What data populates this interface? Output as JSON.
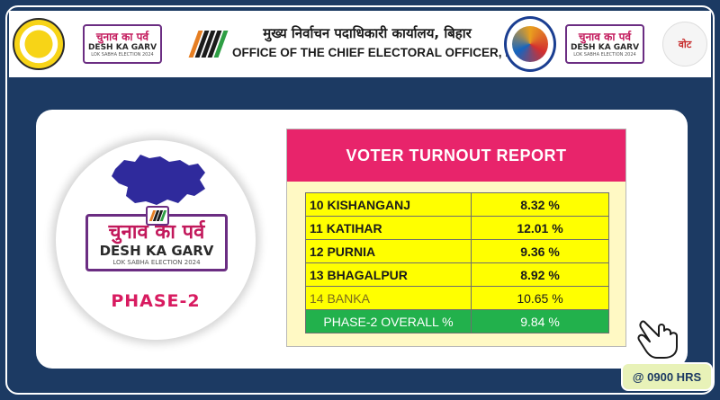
{
  "header": {
    "title_hindi": "मुख्य निर्वाचन पदाधिकारी कार्यालय, बिहार",
    "title_english": "OFFICE OF THE CHIEF ELECTORAL OFFICER, BIHAR",
    "campaign_logo": {
      "hindi": "चुनाव का पर्व",
      "english": "DESH KA GARV",
      "subtitle": "LOK SABHA ELECTION 2024"
    },
    "vote_logo_text": "वोट"
  },
  "emblem": {
    "campaign_hindi": "चुनाव का पर्व",
    "campaign_english": "DESH KA GARV",
    "campaign_subtitle": "LOK SABHA ELECTION 2024",
    "phase": "PHASE-2"
  },
  "report": {
    "title": "VOTER TURNOUT REPORT",
    "rows": [
      {
        "district": "10 KISHANGANJ",
        "turnout": "8.32 %"
      },
      {
        "district": "11 KATIHAR",
        "turnout": "12.01 %"
      },
      {
        "district": "12 PURNIA",
        "turnout": "9.36 %"
      },
      {
        "district": "13 BHAGALPUR",
        "turnout": "8.92 %"
      },
      {
        "district": "14 BANKA",
        "turnout": "10.65 %"
      }
    ],
    "overall": {
      "label": "PHASE-2 OVERALL %",
      "turnout": "9.84 %"
    }
  },
  "time": "@ 0900 HRS",
  "icons": [
    "state-seal-icon",
    "eci-logo-icon",
    "festival-logo-icon",
    "vote-logo-icon",
    "bihar-map-icon",
    "pointing-hand-icon"
  ],
  "colors": {
    "background": "#1c3a63",
    "title_bar": "#e8246b",
    "row_fill": "#ffff00",
    "overall_fill": "#22b14c",
    "phase_text": "#d81b60"
  }
}
